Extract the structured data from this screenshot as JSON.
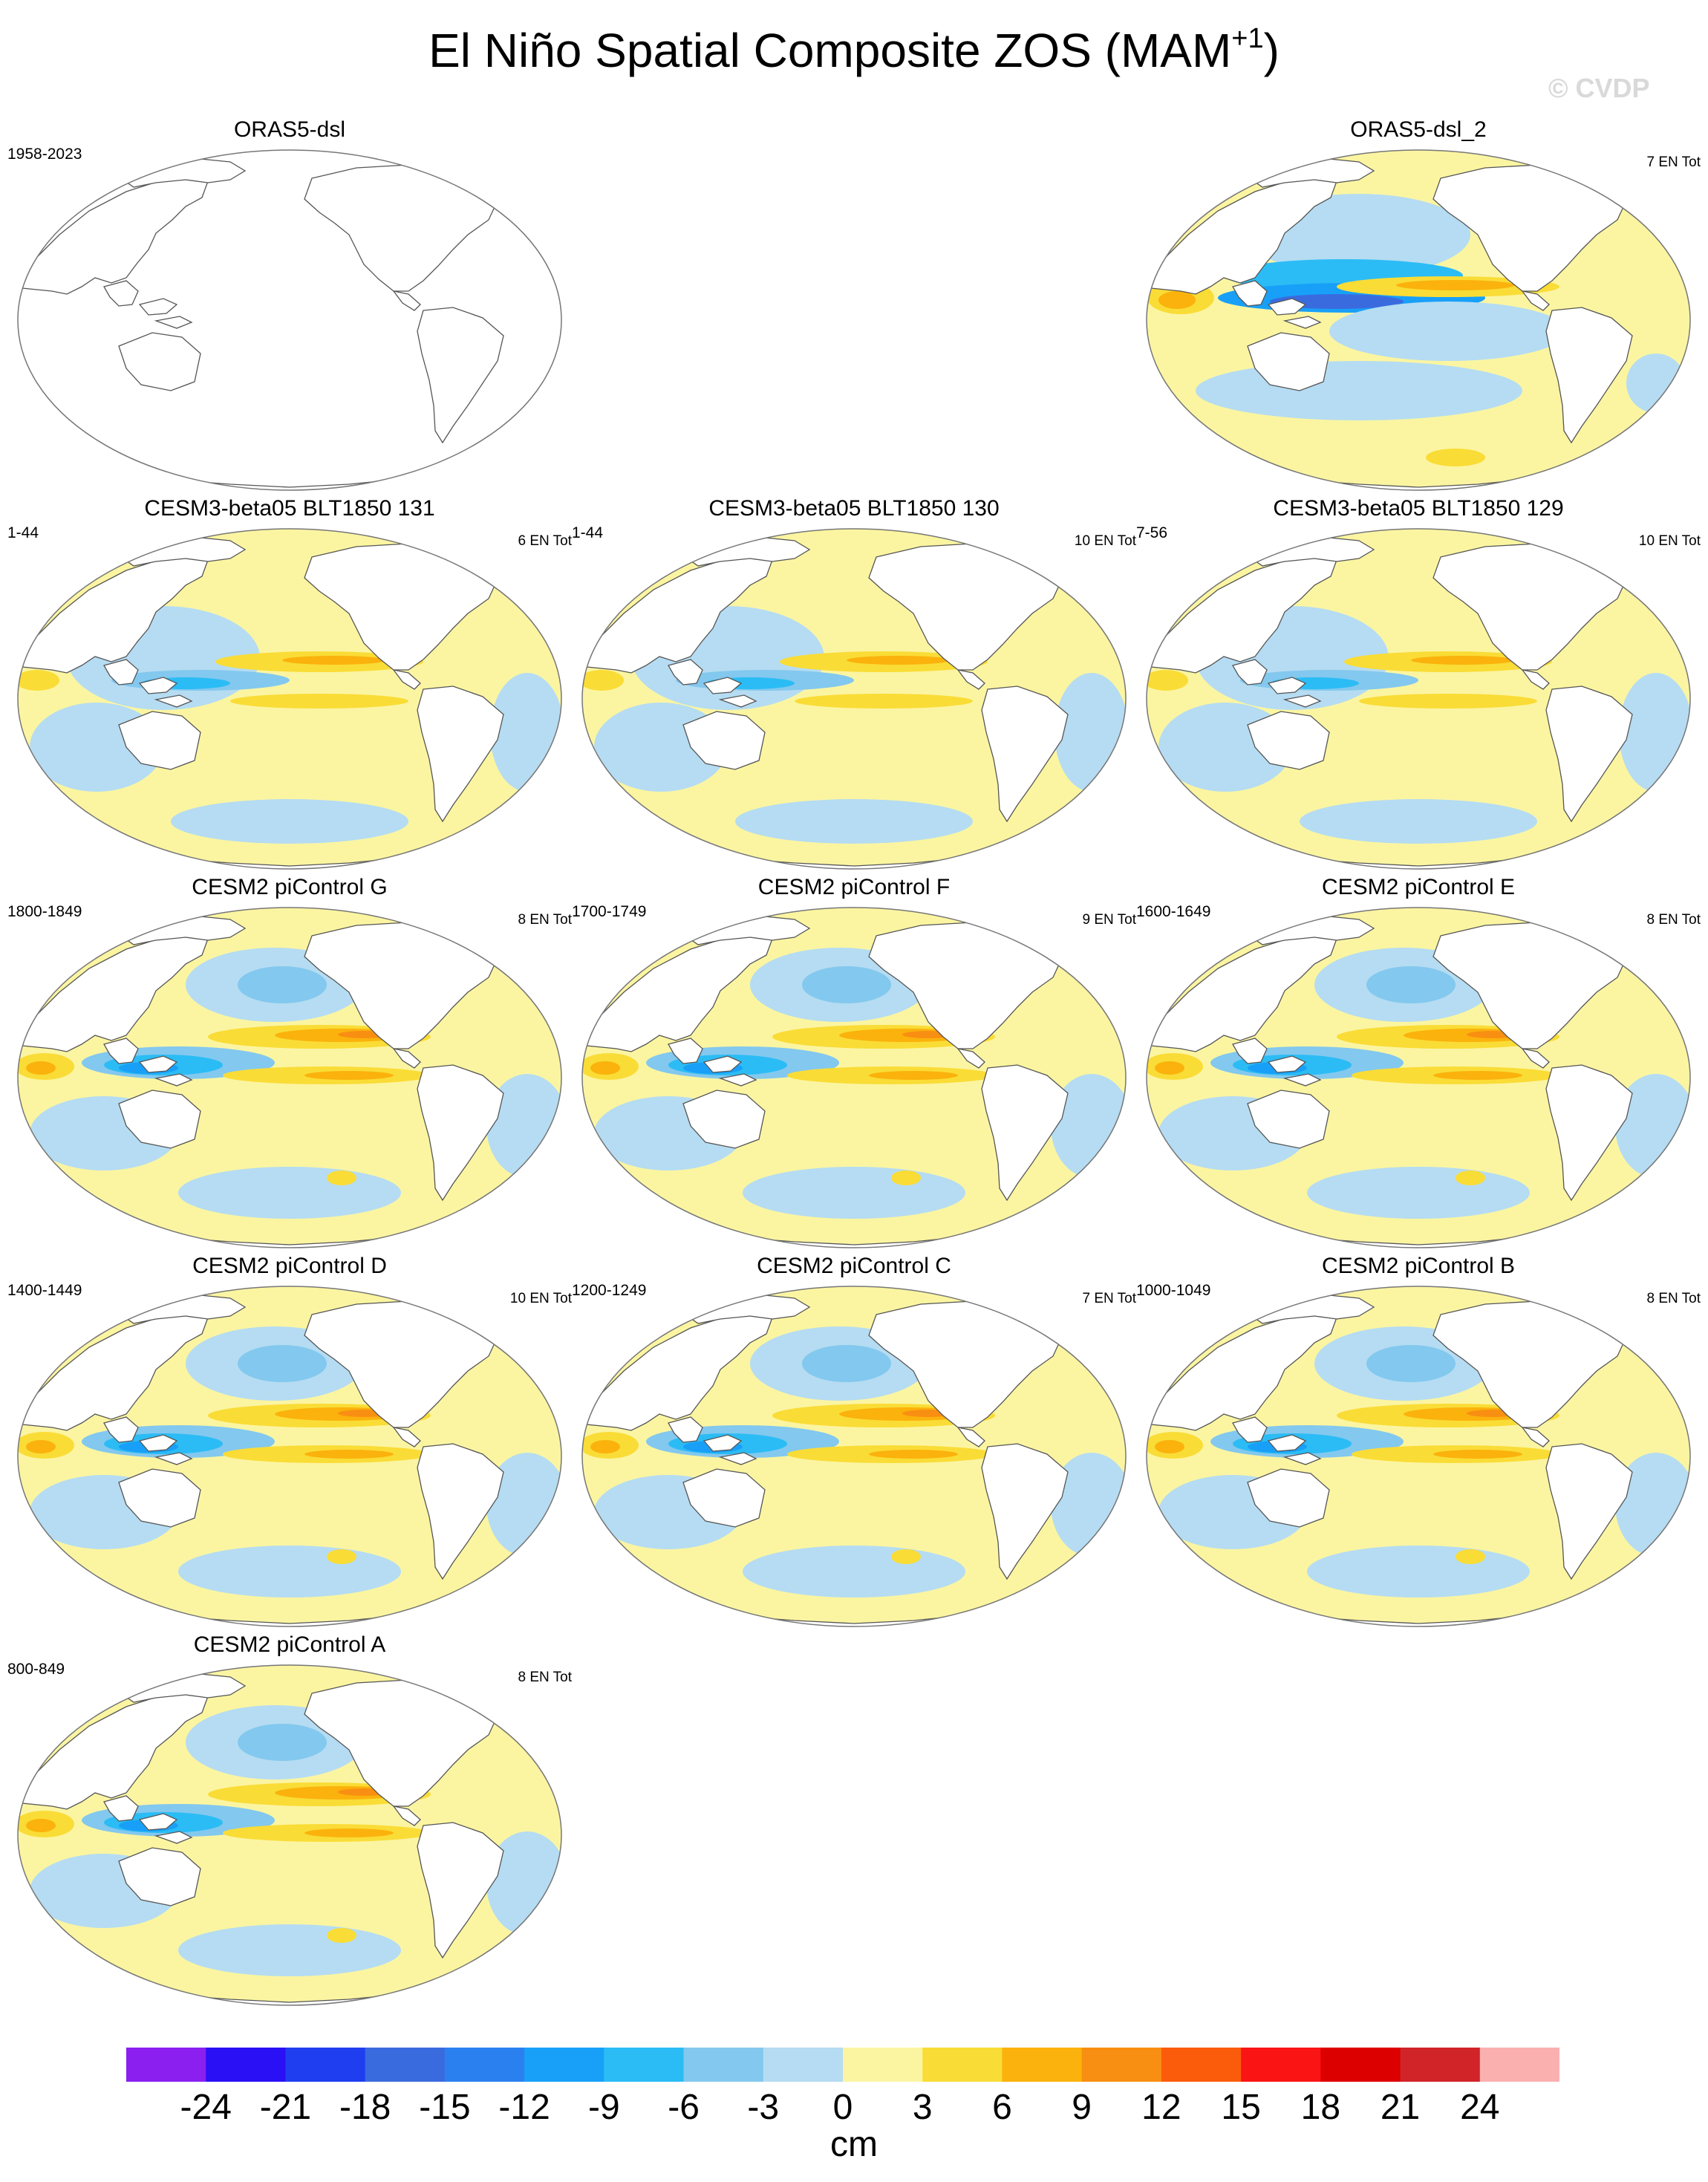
{
  "title": {
    "text": "El Niño Spatial Composite ZOS (MAM",
    "superscript": "+1",
    "close": ")"
  },
  "watermark": "© CVDP",
  "panels": [
    {
      "title": "ORAS5-dsl",
      "left_label": "1958-2023",
      "right_label": "",
      "field": "blank"
    },
    {
      "title": "ORAS5-dsl_2",
      "left_label": "",
      "right_label": "7 EN Tot",
      "field": "observed"
    },
    {
      "title": "CESM3-beta05 BLT1850 131",
      "left_label": "1-44",
      "right_label": "6 EN Tot",
      "field": "weak"
    },
    {
      "title": "CESM3-beta05 BLT1850 130",
      "left_label": "1-44",
      "right_label": "10 EN Tot",
      "field": "weak"
    },
    {
      "title": "CESM3-beta05 BLT1850 129",
      "left_label": "7-56",
      "right_label": "10 EN Tot",
      "field": "weak"
    },
    {
      "title": "CESM2 piControl G",
      "left_label": "1800-1849",
      "right_label": "8 EN Tot",
      "field": "strong"
    },
    {
      "title": "CESM2 piControl F",
      "left_label": "1700-1749",
      "right_label": "9 EN Tot",
      "field": "strong"
    },
    {
      "title": "CESM2 piControl E",
      "left_label": "1600-1649",
      "right_label": "8 EN Tot",
      "field": "strong"
    },
    {
      "title": "CESM2 piControl D",
      "left_label": "1400-1449",
      "right_label": "10 EN Tot",
      "field": "strong"
    },
    {
      "title": "CESM2 piControl C",
      "left_label": "1200-1249",
      "right_label": "7 EN Tot",
      "field": "strong"
    },
    {
      "title": "CESM2 piControl B",
      "left_label": "1000-1049",
      "right_label": "8 EN Tot",
      "field": "strong"
    },
    {
      "title": "CESM2 piControl A",
      "left_label": "800-849",
      "right_label": "8 EN Tot",
      "field": "strong"
    }
  ],
  "colorbar": {
    "colors": [
      "#8a1ff0",
      "#2a10f5",
      "#1f3ef0",
      "#3a6bde",
      "#2b80f0",
      "#18a0f8",
      "#2bbcf5",
      "#83c8ee",
      "#b5dcf2",
      "#fbf5a2",
      "#fadc36",
      "#fbb20c",
      "#f98f12",
      "#fb5c0c",
      "#fa1414",
      "#dd0000",
      "#d02428",
      "#fbb0b0"
    ],
    "tick_labels": [
      "-24",
      "-21",
      "-18",
      "-15",
      "-12",
      "-9",
      "-6",
      "-3",
      "0",
      "3",
      "6",
      "9",
      "12",
      "15",
      "18",
      "21",
      "24"
    ],
    "units": "cm"
  },
  "palette": {
    "ocean_positive_weak": "#fbf5a2",
    "ocean_negative_weak": "#b5dcf2",
    "land": "#ffffff",
    "coast": "#555555"
  }
}
